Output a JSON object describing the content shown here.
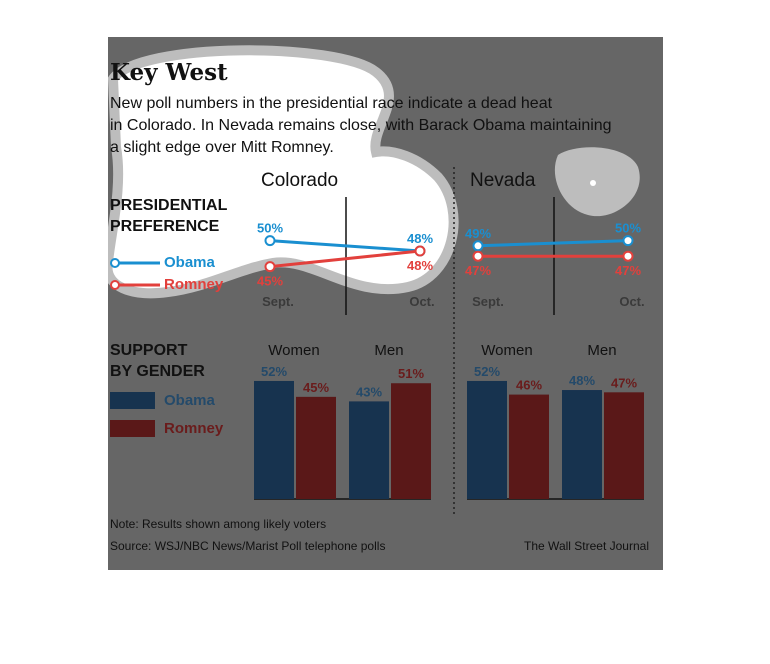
{
  "title": "Key West",
  "subtitle_lines": [
    "New poll numbers in the presidential race indicate a dead heat",
    "in Colorado. In Nevada remains close, with Barack Obama maintaining",
    "a slight edge over Mitt Romney."
  ],
  "preference_label_lines": [
    "PRESIDENTIAL",
    "PREFERENCE"
  ],
  "gender_label_lines": [
    "SUPPORT",
    "BY GENDER"
  ],
  "legend": {
    "obama": "Obama",
    "romney": "Romney"
  },
  "colors": {
    "obama_line": "#1a8fd0",
    "romney_line": "#e2403c",
    "obama_bar": "#17334f",
    "romney_bar": "#5a1818",
    "obama_label_dark": "#244a6a",
    "romney_label_dark": "#6a1c1c",
    "panel_bg": "#666666"
  },
  "note": "Note: Results shown among likely voters",
  "source": "Source: WSJ/NBC News/Marist Poll telephone polls",
  "credit": "The Wall Street Journal",
  "chart_data": [
    {
      "type": "line",
      "title": "Colorado",
      "x": [
        "Sept.",
        "Oct."
      ],
      "unit": "%",
      "series": [
        {
          "name": "Obama",
          "values": [
            50,
            48
          ]
        },
        {
          "name": "Romney",
          "values": [
            45,
            48
          ]
        }
      ]
    },
    {
      "type": "line",
      "title": "Nevada",
      "x": [
        "Sept.",
        "Oct."
      ],
      "unit": "%",
      "series": [
        {
          "name": "Obama",
          "values": [
            49,
            50
          ]
        },
        {
          "name": "Romney",
          "values": [
            47,
            47
          ]
        }
      ]
    },
    {
      "type": "bar",
      "title": "Colorado",
      "categories": [
        "Women",
        "Men"
      ],
      "unit": "%",
      "series": [
        {
          "name": "Obama",
          "values": [
            52,
            43
          ]
        },
        {
          "name": "Romney",
          "values": [
            45,
            51
          ]
        }
      ]
    },
    {
      "type": "bar",
      "title": "Nevada",
      "categories": [
        "Women",
        "Men"
      ],
      "unit": "%",
      "series": [
        {
          "name": "Obama",
          "values": [
            52,
            48
          ]
        },
        {
          "name": "Romney",
          "values": [
            46,
            47
          ]
        }
      ]
    }
  ]
}
